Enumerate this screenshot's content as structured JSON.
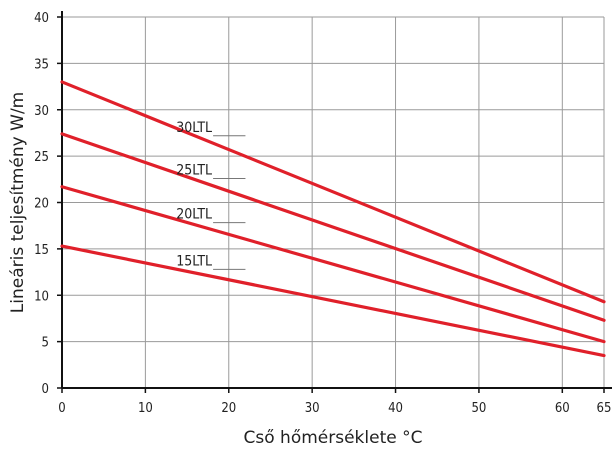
{
  "chart_data": {
    "type": "line",
    "title": "",
    "xlabel": "Cső hőmérséklete °C",
    "ylabel": "Lineáris teljesítmény W/m",
    "xlim": [
      0,
      65
    ],
    "ylim": [
      0,
      40
    ],
    "x_ticks": [
      0,
      10,
      20,
      30,
      40,
      50,
      60,
      65
    ],
    "y_ticks": [
      0,
      5,
      10,
      15,
      20,
      25,
      30,
      35,
      40
    ],
    "grid": true,
    "line_color": "#e0202a",
    "series": [
      {
        "name": "30LTL",
        "x": [
          0,
          65
        ],
        "y": [
          33.0,
          9.3
        ]
      },
      {
        "name": "25LTL",
        "x": [
          0,
          65
        ],
        "y": [
          27.4,
          7.3
        ]
      },
      {
        "name": "20LTL",
        "x": [
          0,
          65
        ],
        "y": [
          21.7,
          5.0
        ]
      },
      {
        "name": "15LTL",
        "x": [
          0,
          65
        ],
        "y": [
          15.3,
          3.5
        ]
      }
    ]
  }
}
